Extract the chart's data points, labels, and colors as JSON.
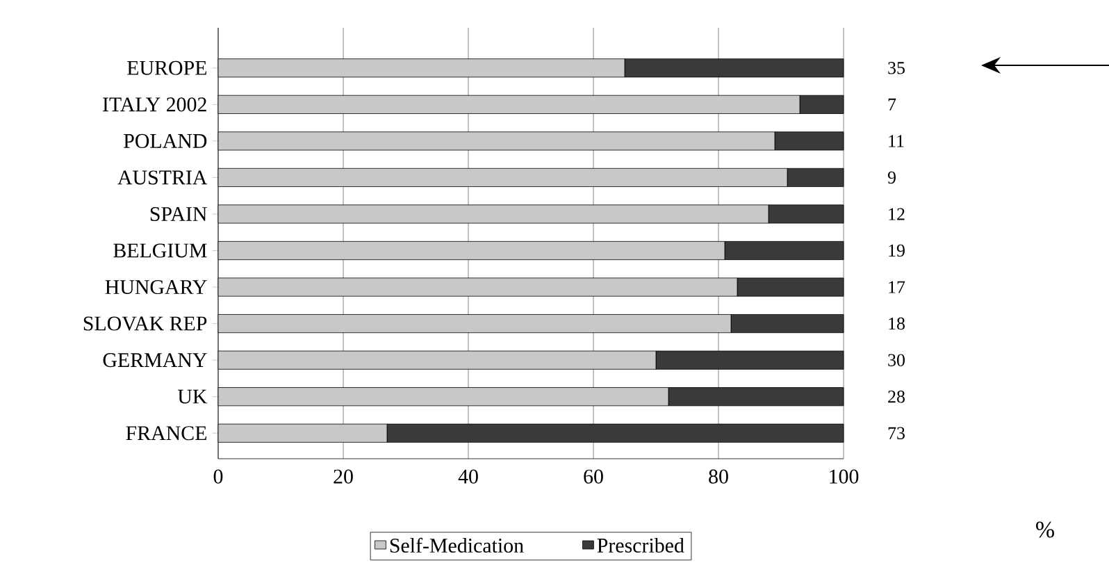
{
  "chart_data": {
    "type": "bar",
    "orientation": "horizontal",
    "stacked": true,
    "annotations": [
      "%"
    ],
    "categories": [
      "EUROPE",
      "ITALY 2002",
      "POLAND",
      "AUSTRIA",
      "SPAIN",
      "BELGIUM",
      "HUNGARY",
      "SLOVAK REP",
      "GERMANY",
      "UK",
      "FRANCE"
    ],
    "series": [
      {
        "name": "Self-Medication",
        "color": "#c8c8c8",
        "values": [
          65,
          93,
          89,
          91,
          88,
          81,
          83,
          82,
          70,
          72,
          27
        ]
      },
      {
        "name": "Prescribed",
        "color": "#3a3a3a",
        "values": [
          35,
          7,
          11,
          9,
          12,
          19,
          17,
          18,
          30,
          28,
          73
        ],
        "value_labels": [
          "35",
          "7",
          "11",
          "9",
          "12",
          "19",
          "17",
          "18",
          "30",
          "28",
          "73"
        ]
      }
    ],
    "xlim": [
      0,
      100
    ],
    "xticks": [
      0,
      20,
      40,
      60,
      80,
      100
    ],
    "grid": "x",
    "legend": "bottom"
  }
}
